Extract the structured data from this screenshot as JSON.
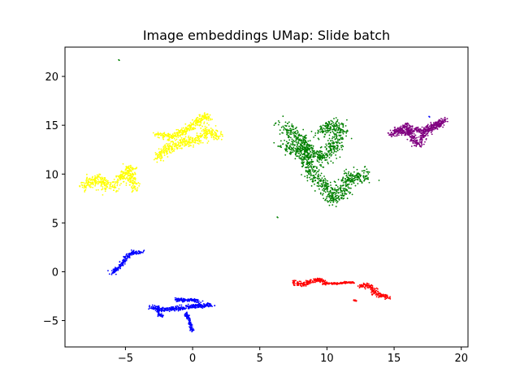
{
  "chart_data": {
    "type": "scatter",
    "title": "Image embeddings UMap: Slide batch",
    "xlabel": "",
    "ylabel": "",
    "xlim": [
      -9.5,
      20.5
    ],
    "ylim": [
      -7.7,
      23.0
    ],
    "xticks": [
      -5,
      0,
      5,
      10,
      15,
      20
    ],
    "yticks": [
      -5,
      0,
      5,
      10,
      15,
      20
    ],
    "xtick_labels": [
      "−5",
      "0",
      "5",
      "10",
      "15",
      "20"
    ],
    "ytick_labels": [
      "−5",
      "0",
      "5",
      "10",
      "15",
      "20"
    ],
    "grid": false,
    "legend": "none",
    "colors": {
      "yellow": "#ffff00",
      "green": "#008000",
      "purple": "#800080",
      "blue": "#0000ff",
      "red": "#ff0000"
    },
    "clusters": [
      {
        "color": "yellow",
        "shape": "path",
        "path": [
          [
            -2.7,
            11.5
          ],
          [
            -2.0,
            12.6
          ],
          [
            -1.2,
            12.9
          ],
          [
            -0.5,
            13.2
          ],
          [
            0.3,
            13.5
          ],
          [
            1.0,
            14.4
          ],
          [
            1.6,
            14.1
          ],
          [
            2.0,
            13.8
          ]
        ],
        "spread": 0.45
      },
      {
        "color": "yellow",
        "shape": "path",
        "path": [
          [
            -2.6,
            14.0
          ],
          [
            -1.6,
            13.8
          ],
          [
            -0.6,
            14.5
          ],
          [
            0.4,
            15.3
          ],
          [
            0.9,
            16.0
          ],
          [
            1.2,
            15.6
          ]
        ],
        "spread": 0.35
      },
      {
        "color": "yellow",
        "shape": "path",
        "path": [
          [
            -8.2,
            8.6
          ],
          [
            -7.6,
            9.2
          ],
          [
            -7.1,
            9.7
          ],
          [
            -6.5,
            8.8
          ],
          [
            -5.8,
            8.7
          ]
        ],
        "spread": 0.45
      },
      {
        "color": "yellow",
        "shape": "path",
        "path": [
          [
            -5.6,
            9.2
          ],
          [
            -5.1,
            10.0
          ],
          [
            -4.7,
            10.6
          ],
          [
            -4.5,
            9.4
          ],
          [
            -4.3,
            8.3
          ]
        ],
        "spread": 0.4
      },
      {
        "color": "green",
        "shape": "path",
        "path": [
          [
            6.8,
            13.0
          ],
          [
            7.5,
            12.4
          ],
          [
            8.3,
            12.6
          ],
          [
            9.0,
            12.0
          ],
          [
            9.8,
            11.5
          ],
          [
            10.3,
            12.8
          ],
          [
            11.0,
            13.5
          ],
          [
            11.0,
            14.8
          ],
          [
            10.2,
            15.1
          ],
          [
            9.5,
            14.0
          ]
        ],
        "spread": 0.6
      },
      {
        "color": "green",
        "shape": "path",
        "path": [
          [
            6.8,
            15.1
          ],
          [
            7.4,
            14.0
          ],
          [
            8.2,
            13.5
          ],
          [
            8.5,
            11.0
          ],
          [
            9.2,
            9.5
          ],
          [
            10.0,
            8.8
          ],
          [
            10.4,
            7.3
          ],
          [
            11.2,
            8.2
          ],
          [
            11.6,
            9.8
          ],
          [
            12.2,
            9.7
          ],
          [
            13.1,
            10.0
          ]
        ],
        "spread": 0.55
      },
      {
        "color": "purple",
        "shape": "path",
        "path": [
          [
            14.7,
            14.0
          ],
          [
            15.4,
            14.5
          ],
          [
            16.0,
            14.9
          ],
          [
            16.4,
            13.5
          ],
          [
            16.8,
            13.0
          ],
          [
            17.5,
            14.7
          ],
          [
            18.2,
            15.1
          ],
          [
            18.8,
            15.6
          ]
        ],
        "spread": 0.3
      },
      {
        "color": "purple",
        "shape": "path",
        "path": [
          [
            15.0,
            14.6
          ],
          [
            15.8,
            14.2
          ],
          [
            16.6,
            14.6
          ],
          [
            17.2,
            14.3
          ],
          [
            17.9,
            14.8
          ],
          [
            18.6,
            15.2
          ]
        ],
        "spread": 0.25
      },
      {
        "color": "blue",
        "shape": "path",
        "path": [
          [
            -6.0,
            -0.2
          ],
          [
            -5.4,
            0.6
          ],
          [
            -5.0,
            1.3
          ],
          [
            -4.6,
            1.9
          ],
          [
            -3.8,
            2.0
          ]
        ],
        "spread": 0.18
      },
      {
        "color": "blue",
        "shape": "path",
        "path": [
          [
            -3.1,
            -3.6
          ],
          [
            -2.4,
            -3.9
          ],
          [
            -1.4,
            -3.8
          ],
          [
            -0.6,
            -3.7
          ],
          [
            0.4,
            -3.5
          ],
          [
            1.5,
            -3.4
          ]
        ],
        "spread": 0.22
      },
      {
        "color": "blue",
        "shape": "path",
        "path": [
          [
            -1.3,
            -2.8
          ],
          [
            -0.6,
            -2.9
          ],
          [
            0.1,
            -2.9
          ],
          [
            0.5,
            -3.1
          ]
        ],
        "spread": 0.15
      },
      {
        "color": "blue",
        "shape": "path",
        "path": [
          [
            -0.5,
            -4.2
          ],
          [
            -0.2,
            -5.3
          ],
          [
            0.0,
            -6.1
          ]
        ],
        "spread": 0.12
      },
      {
        "color": "blue",
        "shape": "path",
        "path": [
          [
            -2.6,
            -3.5
          ],
          [
            -2.5,
            -4.4
          ],
          [
            -2.2,
            -4.6
          ]
        ],
        "spread": 0.1
      },
      {
        "color": "red",
        "shape": "path",
        "path": [
          [
            7.5,
            -1.1
          ],
          [
            8.2,
            -1.3
          ],
          [
            8.8,
            -1.0
          ],
          [
            9.5,
            -0.8
          ],
          [
            10.0,
            -1.2
          ]
        ],
        "spread": 0.22
      },
      {
        "color": "red",
        "shape": "path",
        "path": [
          [
            10.0,
            -1.2
          ],
          [
            10.8,
            -1.2
          ],
          [
            11.5,
            -1.1
          ],
          [
            12.0,
            -1.1
          ]
        ],
        "spread": 0.08
      },
      {
        "color": "red",
        "shape": "path",
        "path": [
          [
            12.5,
            -1.4
          ],
          [
            13.0,
            -1.4
          ],
          [
            13.3,
            -1.6
          ],
          [
            13.7,
            -2.3
          ],
          [
            14.2,
            -2.5
          ],
          [
            14.6,
            -2.6
          ]
        ],
        "spread": 0.25
      },
      {
        "color": "red",
        "shape": "path",
        "path": [
          [
            12.0,
            -2.9
          ],
          [
            12.2,
            -3.0
          ]
        ],
        "spread": 0.05
      },
      {
        "color": "green",
        "shape": "point",
        "x": -5.5,
        "y": 21.7
      },
      {
        "color": "green",
        "shape": "point",
        "x": 6.3,
        "y": 5.6
      },
      {
        "color": "blue",
        "shape": "point",
        "x": 17.6,
        "y": 15.9
      }
    ]
  }
}
